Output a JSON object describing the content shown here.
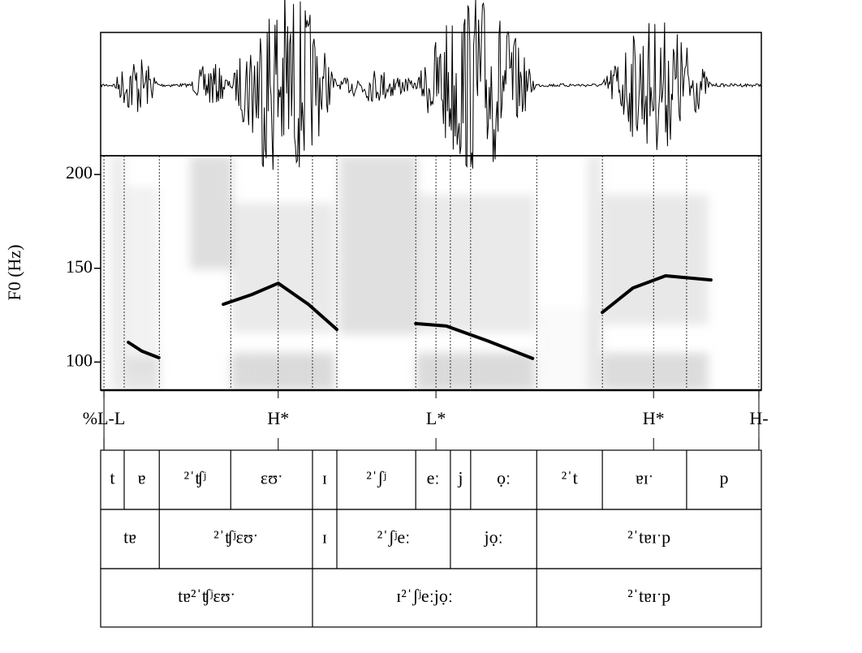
{
  "chart_data": {
    "type": "line",
    "ylabel": "F0 (Hz)",
    "xlim": [
      0,
      1.6
    ],
    "ylim": [
      85,
      210
    ],
    "yticks": [
      100,
      150,
      200
    ],
    "color": "#000000",
    "x": [
      0.067,
      0.1,
      0.141,
      null,
      0.297,
      0.366,
      0.43,
      0.503,
      0.572,
      null,
      0.763,
      0.837,
      0.936,
      1.046,
      null,
      1.215,
      1.289,
      1.368,
      1.478
    ],
    "values": [
      110.5,
      105.8,
      102.3,
      null,
      130.8,
      136,
      142,
      130.8,
      117.4,
      null,
      120.5,
      119.2,
      111.4,
      101.9,
      null,
      126.5,
      139.5,
      146,
      143.8
    ]
  },
  "tones": {
    "labels": [
      "%L-L",
      "H*",
      "L*",
      "H*",
      "H-"
    ],
    "times": [
      0.008,
      0.43,
      0.812,
      1.339,
      1.594
    ]
  },
  "tiers": [
    {
      "boundaries": [
        0.057,
        0.142,
        0.315,
        0.513,
        0.572,
        0.763,
        0.847,
        0.896,
        1.056,
        1.215,
        1.419
      ],
      "labels": [
        "t",
        "ɐ",
        "²ˈʧʲ",
        "ɛʊˑ",
        "ɪ",
        "²ˈʃʲ",
        "eː",
        "j",
        "ọː",
        "²ˈt",
        "ɐɪˑ",
        "p"
      ]
    },
    {
      "boundaries": [
        0.142,
        0.513,
        0.572,
        0.847,
        1.056
      ],
      "labels": [
        "tɐ",
        "²ˈʧʲɛʊˑ",
        "ɪ",
        "²ˈʃʲeː",
        "jọː",
        "²ˈtɐɪˑp"
      ]
    },
    {
      "boundaries": [
        0.513,
        1.056
      ],
      "labels": [
        "tɐ²ˈʧʲɛʊˑ",
        "ɪ²ˈʃʲeːjọː",
        "²ˈtɐɪˑp"
      ]
    }
  ]
}
